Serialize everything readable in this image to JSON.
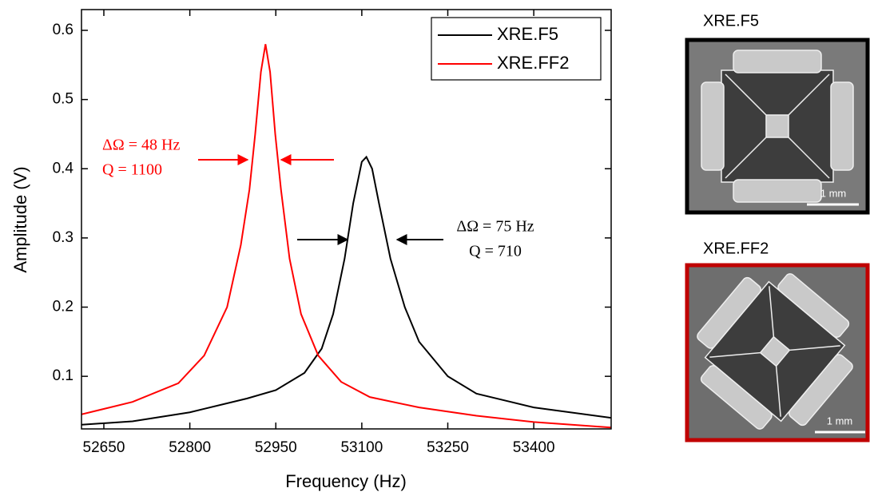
{
  "chart_data": {
    "type": "line",
    "xlabel": "Frequency (Hz)",
    "ylabel": "Amplitude (V)",
    "xlim": [
      52611,
      53535
    ],
    "ylim": [
      0.024,
      0.63
    ],
    "xticks": [
      52650,
      52800,
      52950,
      53100,
      53250,
      53400
    ],
    "yticks": [
      0.1,
      0.2,
      0.3,
      0.4,
      0.5,
      0.6
    ],
    "legend": "upper right",
    "series": [
      {
        "name": "XRE.F5",
        "color": "#000000",
        "x": [
          52611,
          52700,
          52800,
          52900,
          52950,
          53000,
          53030,
          53050,
          53070,
          53085,
          53100,
          53108,
          53118,
          53130,
          53150,
          53175,
          53200,
          53250,
          53300,
          53400,
          53535
        ],
        "values": [
          0.03,
          0.035,
          0.048,
          0.068,
          0.08,
          0.105,
          0.14,
          0.19,
          0.27,
          0.35,
          0.41,
          0.417,
          0.4,
          0.35,
          0.27,
          0.2,
          0.15,
          0.1,
          0.075,
          0.055,
          0.04
        ]
      },
      {
        "name": "XRE.FF2",
        "color": "#ff0000",
        "x": [
          52611,
          52700,
          52780,
          52825,
          52865,
          52889,
          52904,
          52914,
          52924,
          52932,
          52940,
          52949,
          52959,
          52974,
          52994,
          53024,
          53064,
          53114,
          53200,
          53300,
          53400,
          53535
        ],
        "values": [
          0.045,
          0.063,
          0.09,
          0.13,
          0.2,
          0.29,
          0.37,
          0.45,
          0.54,
          0.58,
          0.54,
          0.45,
          0.37,
          0.27,
          0.19,
          0.13,
          0.092,
          0.07,
          0.055,
          0.043,
          0.034,
          0.026
        ]
      }
    ],
    "annotations": [
      {
        "lines": [
          "ΔΩ = 48 Hz",
          "Q = 1100"
        ],
        "color": "#ff0000"
      },
      {
        "lines": [
          "ΔΩ = 75 Hz",
          "Q = 710"
        ],
        "color": "#000000"
      }
    ]
  },
  "images": [
    {
      "label": "XRE.F5",
      "scale_bar": "1 mm"
    },
    {
      "label": "XRE.FF2",
      "scale_bar": "1 mm"
    }
  ]
}
